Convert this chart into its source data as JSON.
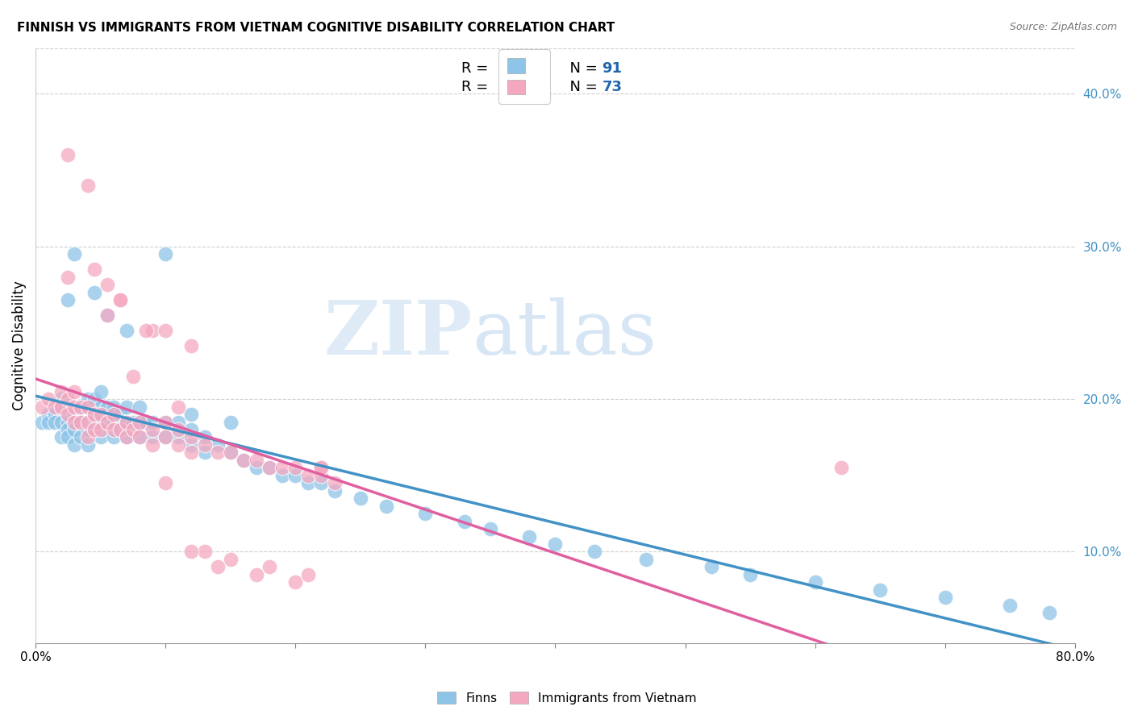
{
  "title": "FINNISH VS IMMIGRANTS FROM VIETNAM COGNITIVE DISABILITY CORRELATION CHART",
  "source": "Source: ZipAtlas.com",
  "ylabel": "Cognitive Disability",
  "xlim": [
    0.0,
    0.8
  ],
  "ylim": [
    0.04,
    0.43
  ],
  "ytick_values": [
    0.1,
    0.2,
    0.3,
    0.4
  ],
  "blue_color": "#8ec4e8",
  "pink_color": "#f4a8c0",
  "blue_line_color": "#4292c6",
  "pink_line_color": "#e05fa0",
  "blue_dark": "#2166ac",
  "background_color": "#ffffff",
  "grid_color": "#d0d0d0",
  "watermark_zip": "ZIP",
  "watermark_atlas": "atlas",
  "finns_x": [
    0.005,
    0.01,
    0.01,
    0.015,
    0.015,
    0.02,
    0.02,
    0.02,
    0.02,
    0.025,
    0.025,
    0.025,
    0.025,
    0.03,
    0.03,
    0.03,
    0.03,
    0.03,
    0.035,
    0.035,
    0.035,
    0.04,
    0.04,
    0.04,
    0.04,
    0.04,
    0.045,
    0.045,
    0.05,
    0.05,
    0.05,
    0.05,
    0.055,
    0.055,
    0.06,
    0.06,
    0.06,
    0.065,
    0.065,
    0.07,
    0.07,
    0.07,
    0.075,
    0.08,
    0.08,
    0.08,
    0.085,
    0.09,
    0.09,
    0.1,
    0.1,
    0.11,
    0.11,
    0.12,
    0.12,
    0.13,
    0.13,
    0.14,
    0.15,
    0.16,
    0.17,
    0.18,
    0.19,
    0.2,
    0.21,
    0.22,
    0.23,
    0.25,
    0.27,
    0.3,
    0.33,
    0.35,
    0.38,
    0.4,
    0.43,
    0.47,
    0.52,
    0.55,
    0.6,
    0.65,
    0.7,
    0.75,
    0.78,
    0.025,
    0.03,
    0.045,
    0.055,
    0.07,
    0.1,
    0.12,
    0.15
  ],
  "finns_y": [
    0.185,
    0.19,
    0.185,
    0.19,
    0.185,
    0.2,
    0.195,
    0.185,
    0.175,
    0.19,
    0.185,
    0.18,
    0.175,
    0.195,
    0.19,
    0.185,
    0.18,
    0.17,
    0.195,
    0.185,
    0.175,
    0.2,
    0.195,
    0.185,
    0.18,
    0.17,
    0.2,
    0.19,
    0.205,
    0.195,
    0.185,
    0.175,
    0.195,
    0.185,
    0.195,
    0.185,
    0.175,
    0.19,
    0.18,
    0.195,
    0.185,
    0.175,
    0.185,
    0.195,
    0.185,
    0.175,
    0.185,
    0.185,
    0.175,
    0.185,
    0.175,
    0.185,
    0.175,
    0.18,
    0.17,
    0.175,
    0.165,
    0.17,
    0.165,
    0.16,
    0.155,
    0.155,
    0.15,
    0.15,
    0.145,
    0.145,
    0.14,
    0.135,
    0.13,
    0.125,
    0.12,
    0.115,
    0.11,
    0.105,
    0.1,
    0.095,
    0.09,
    0.085,
    0.08,
    0.075,
    0.07,
    0.065,
    0.06,
    0.265,
    0.295,
    0.27,
    0.255,
    0.245,
    0.295,
    0.19,
    0.185
  ],
  "vietnam_x": [
    0.005,
    0.01,
    0.015,
    0.02,
    0.02,
    0.025,
    0.025,
    0.03,
    0.03,
    0.03,
    0.035,
    0.035,
    0.04,
    0.04,
    0.04,
    0.045,
    0.045,
    0.05,
    0.05,
    0.055,
    0.06,
    0.06,
    0.065,
    0.07,
    0.07,
    0.075,
    0.08,
    0.08,
    0.09,
    0.09,
    0.1,
    0.1,
    0.11,
    0.11,
    0.12,
    0.12,
    0.13,
    0.14,
    0.15,
    0.16,
    0.17,
    0.18,
    0.19,
    0.2,
    0.21,
    0.22,
    0.23,
    0.025,
    0.04,
    0.055,
    0.065,
    0.075,
    0.09,
    0.11,
    0.13,
    0.15,
    0.18,
    0.21,
    0.22,
    0.1,
    0.12,
    0.14,
    0.17,
    0.2,
    0.22,
    0.62,
    0.025,
    0.045,
    0.055,
    0.065,
    0.085,
    0.1,
    0.12
  ],
  "vietnam_y": [
    0.195,
    0.2,
    0.195,
    0.205,
    0.195,
    0.2,
    0.19,
    0.205,
    0.195,
    0.185,
    0.195,
    0.185,
    0.195,
    0.185,
    0.175,
    0.19,
    0.18,
    0.19,
    0.18,
    0.185,
    0.19,
    0.18,
    0.18,
    0.185,
    0.175,
    0.18,
    0.185,
    0.175,
    0.18,
    0.17,
    0.185,
    0.175,
    0.18,
    0.17,
    0.175,
    0.165,
    0.17,
    0.165,
    0.165,
    0.16,
    0.16,
    0.155,
    0.155,
    0.155,
    0.15,
    0.15,
    0.145,
    0.36,
    0.34,
    0.255,
    0.265,
    0.215,
    0.245,
    0.195,
    0.1,
    0.095,
    0.09,
    0.085,
    0.155,
    0.145,
    0.1,
    0.09,
    0.085,
    0.08,
    0.155,
    0.155,
    0.28,
    0.285,
    0.275,
    0.265,
    0.245,
    0.245,
    0.235
  ]
}
